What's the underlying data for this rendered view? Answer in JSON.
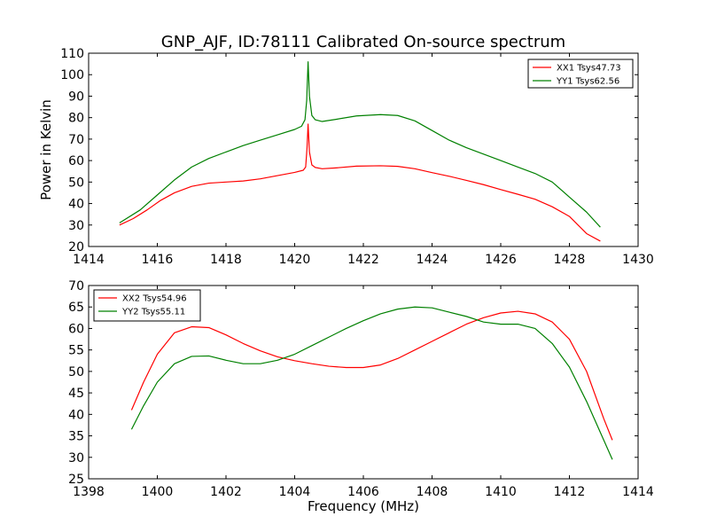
{
  "figure": {
    "title": "GNP_AJF, ID:78111 Calibrated On-source spectrum"
  },
  "chart_data": [
    {
      "type": "line",
      "xlabel": "",
      "ylabel": "Power in Kelvin",
      "xlim": [
        1414,
        1430
      ],
      "ylim": [
        20,
        110
      ],
      "xticks": [
        1414,
        1416,
        1418,
        1420,
        1422,
        1424,
        1426,
        1428,
        1430
      ],
      "yticks": [
        20,
        30,
        40,
        50,
        60,
        70,
        80,
        90,
        100,
        110
      ],
      "grid": false,
      "legend_position": "top-right",
      "series": [
        {
          "name": "XX1 Tsys47.73",
          "color": "#ff0000",
          "points": [
            [
              1414.9,
              30
            ],
            [
              1415.3,
              33
            ],
            [
              1415.7,
              37
            ],
            [
              1416.1,
              41.5
            ],
            [
              1416.5,
              45
            ],
            [
              1417,
              48
            ],
            [
              1417.5,
              49.5
            ],
            [
              1418,
              50
            ],
            [
              1418.5,
              50.5
            ],
            [
              1419,
              51.5
            ],
            [
              1419.5,
              53
            ],
            [
              1420,
              54.5
            ],
            [
              1420.25,
              55.5
            ],
            [
              1420.32,
              57
            ],
            [
              1420.36,
              66
            ],
            [
              1420.39,
              77
            ],
            [
              1420.43,
              64
            ],
            [
              1420.5,
              58
            ],
            [
              1420.6,
              56.8
            ],
            [
              1420.8,
              56.2
            ],
            [
              1421.2,
              56.6
            ],
            [
              1421.8,
              57.4
            ],
            [
              1422.5,
              57.6
            ],
            [
              1423,
              57.3
            ],
            [
              1423.5,
              56.2
            ],
            [
              1424,
              54.4
            ],
            [
              1424.5,
              52.7
            ],
            [
              1425,
              50.8
            ],
            [
              1425.5,
              48.8
            ],
            [
              1426,
              46.5
            ],
            [
              1426.5,
              44.3
            ],
            [
              1427,
              42
            ],
            [
              1427.5,
              38.5
            ],
            [
              1428,
              34
            ],
            [
              1428.5,
              26
            ],
            [
              1428.9,
              22.5
            ]
          ]
        },
        {
          "name": "YY1 Tsys62.56",
          "color": "#008000",
          "points": [
            [
              1414.9,
              31
            ],
            [
              1415.5,
              37
            ],
            [
              1416,
              44
            ],
            [
              1416.5,
              51
            ],
            [
              1417,
              57
            ],
            [
              1417.5,
              61
            ],
            [
              1418,
              64
            ],
            [
              1418.5,
              67
            ],
            [
              1419,
              69.5
            ],
            [
              1419.5,
              72
            ],
            [
              1420,
              74.5
            ],
            [
              1420.2,
              76
            ],
            [
              1420.3,
              79
            ],
            [
              1420.35,
              88
            ],
            [
              1420.39,
              106
            ],
            [
              1420.43,
              90
            ],
            [
              1420.5,
              81
            ],
            [
              1420.6,
              79
            ],
            [
              1420.8,
              78.2
            ],
            [
              1421.2,
              79.2
            ],
            [
              1421.8,
              80.8
            ],
            [
              1422.5,
              81.4
            ],
            [
              1423,
              81
            ],
            [
              1423.5,
              78.5
            ],
            [
              1424,
              74
            ],
            [
              1424.5,
              69.5
            ],
            [
              1425,
              66
            ],
            [
              1425.5,
              63
            ],
            [
              1426,
              60
            ],
            [
              1426.5,
              57
            ],
            [
              1427,
              54
            ],
            [
              1427.5,
              50
            ],
            [
              1428,
              43
            ],
            [
              1428.5,
              36
            ],
            [
              1428.9,
              29
            ]
          ]
        }
      ]
    },
    {
      "type": "line",
      "xlabel": "Frequency (MHz)",
      "ylabel": "",
      "xlim": [
        1398,
        1414
      ],
      "ylim": [
        25,
        70
      ],
      "xticks": [
        1398,
        1400,
        1402,
        1404,
        1406,
        1408,
        1410,
        1412,
        1414
      ],
      "yticks": [
        25,
        30,
        35,
        40,
        45,
        50,
        55,
        60,
        65,
        70
      ],
      "grid": false,
      "legend_position": "top-left",
      "series": [
        {
          "name": "XX2 Tsys54.96",
          "color": "#ff0000",
          "points": [
            [
              1399.25,
              41
            ],
            [
              1399.6,
              47.5
            ],
            [
              1400,
              54
            ],
            [
              1400.5,
              59
            ],
            [
              1401,
              60.4
            ],
            [
              1401.5,
              60.2
            ],
            [
              1402,
              58.5
            ],
            [
              1402.5,
              56.5
            ],
            [
              1403,
              54.8
            ],
            [
              1403.5,
              53.4
            ],
            [
              1404,
              52.5
            ],
            [
              1404.5,
              51.8
            ],
            [
              1405,
              51.2
            ],
            [
              1405.5,
              50.9
            ],
            [
              1406,
              50.9
            ],
            [
              1406.5,
              51.5
            ],
            [
              1407,
              53
            ],
            [
              1407.5,
              55
            ],
            [
              1408,
              57
            ],
            [
              1408.5,
              59
            ],
            [
              1409,
              61
            ],
            [
              1409.5,
              62.5
            ],
            [
              1410,
              63.6
            ],
            [
              1410.5,
              64
            ],
            [
              1411,
              63.4
            ],
            [
              1411.5,
              61.5
            ],
            [
              1412,
              57.5
            ],
            [
              1412.5,
              50
            ],
            [
              1413,
              39
            ],
            [
              1413.25,
              34
            ]
          ]
        },
        {
          "name": "YY2 Tsys55.11",
          "color": "#008000",
          "points": [
            [
              1399.25,
              36.5
            ],
            [
              1399.6,
              42
            ],
            [
              1400,
              47.5
            ],
            [
              1400.5,
              51.8
            ],
            [
              1401,
              53.5
            ],
            [
              1401.5,
              53.6
            ],
            [
              1402,
              52.6
            ],
            [
              1402.5,
              51.8
            ],
            [
              1403,
              51.8
            ],
            [
              1403.5,
              52.6
            ],
            [
              1404,
              54
            ],
            [
              1404.5,
              56
            ],
            [
              1405,
              58
            ],
            [
              1405.5,
              60
            ],
            [
              1406,
              61.8
            ],
            [
              1406.5,
              63.4
            ],
            [
              1407,
              64.5
            ],
            [
              1407.5,
              65
            ],
            [
              1408,
              64.8
            ],
            [
              1408.5,
              63.8
            ],
            [
              1409,
              62.8
            ],
            [
              1409.5,
              61.5
            ],
            [
              1410,
              61
            ],
            [
              1410.5,
              61
            ],
            [
              1411,
              60
            ],
            [
              1411.5,
              56.5
            ],
            [
              1412,
              51
            ],
            [
              1412.5,
              43
            ],
            [
              1413,
              34
            ],
            [
              1413.25,
              29.5
            ]
          ]
        }
      ]
    }
  ]
}
